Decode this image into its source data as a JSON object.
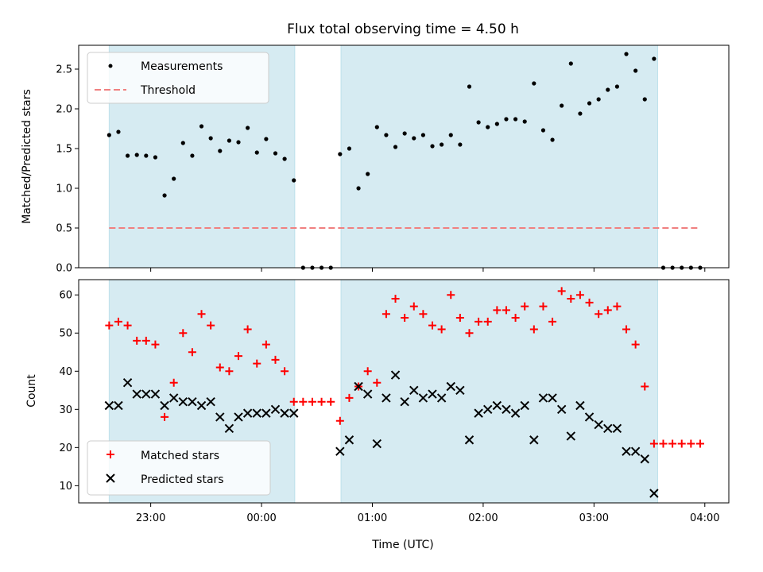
{
  "chart_data": [
    {
      "type": "scatter",
      "title": "Flux total observing time = 4.50 h",
      "xlabel": "",
      "ylabel": "Matched/Predicted stars",
      "ylim": [
        0,
        2.8
      ],
      "yticks": [
        0.0,
        0.5,
        1.0,
        1.5,
        2.0,
        2.5
      ],
      "ytick_labels": [
        "0.0",
        "0.5",
        "1.0",
        "1.5",
        "2.0",
        "2.5"
      ],
      "x_unit": "minutes after 22:00 UTC",
      "xlim": [
        21,
        373
      ],
      "xticks": [
        60,
        120,
        180,
        240,
        300,
        360
      ],
      "shaded_intervals": [
        [
          37.5,
          138
        ],
        [
          163,
          334.5
        ]
      ],
      "shade_color": "#add8e6",
      "legend_position": "upper left",
      "series": [
        {
          "name": "Measurements",
          "marker": "dot",
          "color": "#000000",
          "x": [
            37.5,
            42.5,
            47.5,
            52.5,
            57.5,
            62.5,
            67.5,
            72.5,
            77.5,
            82.5,
            87.5,
            92.5,
            97.5,
            102.5,
            107.5,
            112.5,
            117.5,
            122.5,
            127.5,
            132.5,
            137.5,
            142.5,
            147.5,
            152.5,
            157.5,
            162.5,
            167.5,
            172.5,
            177.5,
            182.5,
            187.5,
            192.5,
            197.5,
            202.5,
            207.5,
            212.5,
            217.5,
            222.5,
            227.5,
            232.5,
            237.5,
            242.5,
            247.5,
            252.5,
            257.5,
            262.5,
            267.5,
            272.5,
            277.5,
            282.5,
            287.5,
            292.5,
            297.5,
            302.5,
            307.5,
            312.5,
            317.5,
            322.5,
            327.5,
            332.5,
            337.5,
            342.5,
            347.5,
            352.5,
            357.5
          ],
          "y": [
            1.67,
            1.71,
            1.41,
            1.42,
            1.41,
            1.39,
            0.91,
            1.12,
            1.57,
            1.41,
            1.78,
            1.63,
            1.47,
            1.6,
            1.58,
            1.76,
            1.45,
            1.62,
            1.44,
            1.37,
            1.1,
            0,
            0,
            0,
            0,
            1.43,
            1.5,
            1.0,
            1.18,
            1.77,
            1.67,
            1.52,
            1.69,
            1.63,
            1.67,
            1.53,
            1.55,
            1.67,
            1.55,
            2.28,
            1.83,
            1.77,
            1.81,
            1.87,
            1.87,
            1.84,
            2.32,
            1.73,
            1.61,
            2.04,
            2.57,
            1.94,
            2.07,
            2.12,
            2.24,
            2.28,
            2.69,
            2.48,
            2.12,
            2.63,
            0,
            0,
            0,
            0,
            0
          ]
        },
        {
          "name": "Threshold",
          "marker": "dashed-line",
          "color": "#f08080",
          "x": [
            37.5,
            357.5
          ],
          "y": [
            0.5,
            0.5
          ]
        }
      ]
    },
    {
      "type": "scatter",
      "xlabel": "Time (UTC)",
      "ylabel": "Count",
      "ylim": [
        5.5,
        64
      ],
      "yticks": [
        10,
        20,
        30,
        40,
        50,
        60
      ],
      "ytick_labels": [
        "10",
        "20",
        "30",
        "40",
        "50",
        "60"
      ],
      "x_unit": "minutes after 22:00 UTC",
      "xlim": [
        21,
        373
      ],
      "xticks": [
        60,
        120,
        180,
        240,
        300,
        360
      ],
      "xtick_labels": [
        "23:00",
        "00:00",
        "01:00",
        "02:00",
        "03:00",
        "04:00"
      ],
      "shaded_intervals": [
        [
          37.5,
          138
        ],
        [
          163,
          334.5
        ]
      ],
      "shade_color": "#add8e6",
      "legend_position": "lower left",
      "series": [
        {
          "name": "Matched stars",
          "marker": "plus",
          "color": "#ff0000",
          "x": [
            37.5,
            42.5,
            47.5,
            52.5,
            57.5,
            62.5,
            67.5,
            72.5,
            77.5,
            82.5,
            87.5,
            92.5,
            97.5,
            102.5,
            107.5,
            112.5,
            117.5,
            122.5,
            127.5,
            132.5,
            137.5,
            142.5,
            147.5,
            152.5,
            157.5,
            162.5,
            167.5,
            172.5,
            177.5,
            182.5,
            187.5,
            192.5,
            197.5,
            202.5,
            207.5,
            212.5,
            217.5,
            222.5,
            227.5,
            232.5,
            237.5,
            242.5,
            247.5,
            252.5,
            257.5,
            262.5,
            267.5,
            272.5,
            277.5,
            282.5,
            287.5,
            292.5,
            297.5,
            302.5,
            307.5,
            312.5,
            317.5,
            322.5,
            327.5,
            332.5,
            337.5,
            342.5,
            347.5,
            352.5,
            357.5
          ],
          "y": [
            52,
            53,
            52,
            48,
            48,
            47,
            28,
            37,
            50,
            45,
            55,
            52,
            41,
            40,
            44,
            51,
            42,
            47,
            43,
            40,
            32,
            32,
            32,
            32,
            32,
            27,
            33,
            36,
            40,
            37,
            55,
            59,
            54,
            57,
            55,
            52,
            51,
            60,
            54,
            50,
            53,
            53,
            56,
            56,
            54,
            57,
            51,
            57,
            53,
            61,
            59,
            60,
            58,
            55,
            56,
            57,
            51,
            47,
            36,
            21,
            21,
            21,
            21,
            21,
            21
          ]
        },
        {
          "name": "Predicted stars",
          "marker": "x",
          "color": "#000000",
          "x": [
            37.5,
            42.5,
            47.5,
            52.5,
            57.5,
            62.5,
            67.5,
            72.5,
            77.5,
            82.5,
            87.5,
            92.5,
            97.5,
            102.5,
            107.5,
            112.5,
            117.5,
            122.5,
            127.5,
            132.5,
            137.5,
            162.5,
            167.5,
            172.5,
            177.5,
            182.5,
            187.5,
            192.5,
            197.5,
            202.5,
            207.5,
            212.5,
            217.5,
            222.5,
            227.5,
            232.5,
            237.5,
            242.5,
            247.5,
            252.5,
            257.5,
            262.5,
            267.5,
            272.5,
            277.5,
            282.5,
            287.5,
            292.5,
            297.5,
            302.5,
            307.5,
            312.5,
            317.5,
            322.5,
            327.5,
            332.5
          ],
          "y": [
            31,
            31,
            37,
            34,
            34,
            34,
            31,
            33,
            32,
            32,
            31,
            32,
            28,
            25,
            28,
            29,
            29,
            29,
            30,
            29,
            29,
            19,
            22,
            36,
            34,
            21,
            33,
            39,
            32,
            35,
            33,
            34,
            33,
            36,
            35,
            22,
            29,
            30,
            31,
            30,
            29,
            31,
            22,
            33,
            33,
            30,
            23,
            31,
            28,
            26,
            25,
            25,
            19,
            19,
            17,
            8
          ]
        }
      ]
    }
  ]
}
